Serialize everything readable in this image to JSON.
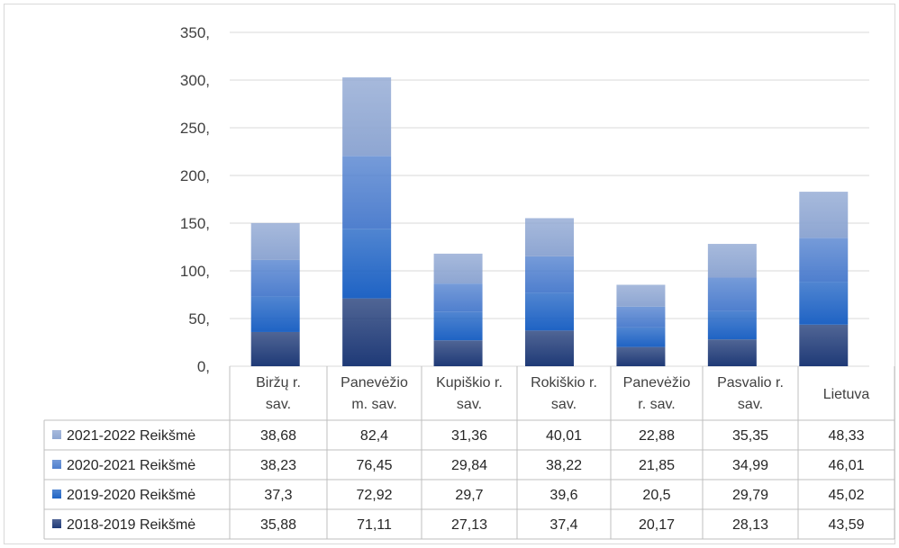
{
  "chart_data": {
    "type": "bar",
    "stacked": true,
    "categories": [
      [
        "Biržų r.",
        "sav."
      ],
      [
        "Panevėžio",
        "m. sav."
      ],
      [
        "Kupiškio r.",
        "sav."
      ],
      [
        "Rokiškio r.",
        "sav."
      ],
      [
        "Panevėžio",
        "r. sav."
      ],
      [
        "Pasvalio r.",
        "sav."
      ],
      [
        "Lietuva"
      ]
    ],
    "series": [
      {
        "name": "2018-2019 Reikšmė",
        "color": "#1f3a77",
        "values": [
          35.88,
          71.11,
          27.13,
          37.4,
          20.17,
          28.13,
          43.59
        ],
        "labels": [
          "35,88",
          "71,11",
          "27,13",
          "37,4",
          "20,17",
          "28,13",
          "43,59"
        ]
      },
      {
        "name": "2019-2020 Reikšmė",
        "color": "#1f63c4",
        "values": [
          37.3,
          72.92,
          29.7,
          39.6,
          20.5,
          29.79,
          45.02
        ],
        "labels": [
          "37,3",
          "72,92",
          "29,7",
          "39,6",
          "20,5",
          "29,79",
          "45,02"
        ]
      },
      {
        "name": "2020-2021 Reikšmė",
        "color": "#4f7fce",
        "values": [
          38.23,
          76.45,
          29.84,
          38.22,
          21.85,
          34.99,
          46.01
        ],
        "labels": [
          "38,23",
          "76,45",
          "29,84",
          "38,22",
          "21,85",
          "34,99",
          "46,01"
        ]
      },
      {
        "name": "2021-2022 Reikšmė",
        "color": "#8ea6d2",
        "values": [
          38.68,
          82.4,
          31.36,
          40.01,
          22.88,
          35.35,
          48.33
        ],
        "labels": [
          "38,68",
          "82,4",
          "31,36",
          "40,01",
          "22,88",
          "35,35",
          "48,33"
        ]
      }
    ],
    "yticks": [
      "0,",
      "50,",
      "100,",
      "150,",
      "200,",
      "250,",
      "300,",
      "350,"
    ],
    "ylim": [
      0,
      350
    ],
    "grid": true,
    "legend": "data-table-left",
    "table_row_order": [
      "2021-2022 Reikšmė",
      "2020-2021 Reikšmė",
      "2019-2020 Reikšmė",
      "2018-2019 Reikšmė"
    ]
  }
}
